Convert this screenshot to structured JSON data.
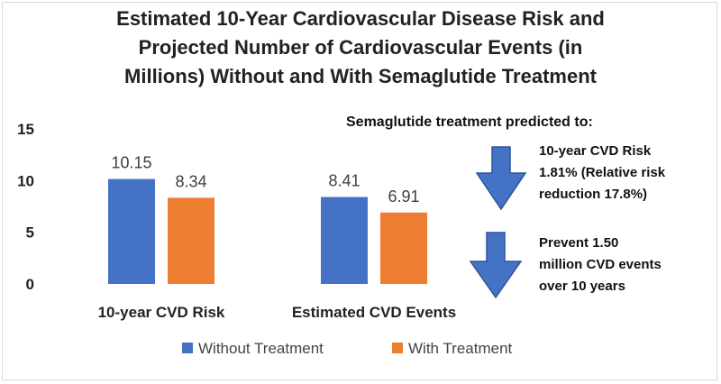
{
  "chart_data": {
    "type": "bar",
    "title": [
      "Estimated 10-Year Cardiovascular Disease Risk and",
      "Projected Number of Cardiovascular Events (in",
      "Millions) Without and With Semaglutide Treatment"
    ],
    "categories": [
      "10-year CVD Risk",
      "Estimated CVD Events"
    ],
    "series": [
      {
        "name": "Without Treatment",
        "values": [
          10.15,
          8.41
        ],
        "labels": [
          "10.15",
          "8.41"
        ],
        "color": "#4472C4"
      },
      {
        "name": "With Treatment",
        "values": [
          8.34,
          6.91
        ],
        "labels": [
          "8.34",
          "6.91"
        ],
        "color": "#ED7D31"
      }
    ],
    "ylim": [
      0,
      15
    ],
    "yticks": [
      0,
      5,
      10,
      15
    ],
    "grid": false,
    "legend": "bottom",
    "annotations": {
      "heading": "Semaglutide treatment predicted to:",
      "risk": [
        "10-year CVD Risk",
        "1.81% (Relative risk",
        "reduction 17.8%)"
      ],
      "events": [
        "Prevent 1.50",
        "million CVD events",
        "over 10 years"
      ],
      "arrow_color": "#4472C4"
    }
  }
}
